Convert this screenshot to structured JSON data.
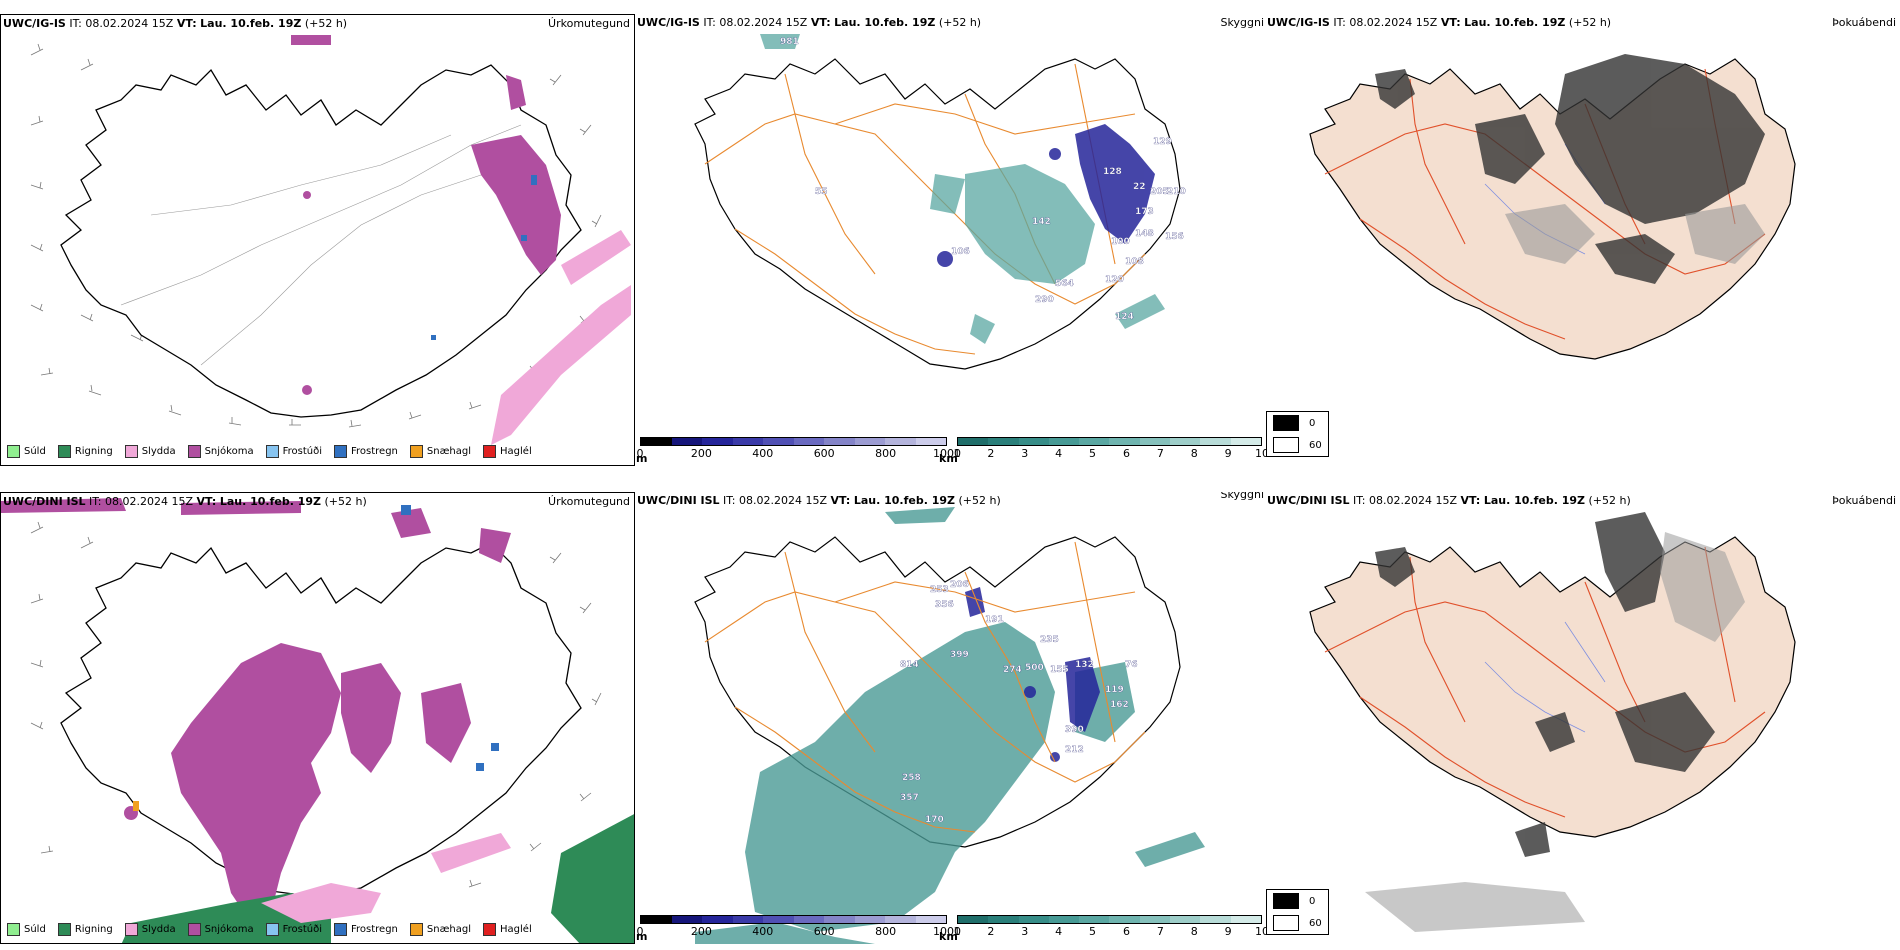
{
  "rows": [
    {
      "model": "UWC/IG-IS",
      "it": "IT: 08.02.2024 15Z",
      "vt_label": "VT:",
      "vt": "Lau. 10.feb. 19Z",
      "lead": "(+52 h)"
    },
    {
      "model": "UWC/DINI ISL",
      "it": "IT: 08.02.2024 15Z",
      "vt_label": "VT:",
      "vt": "Lau. 10.feb. 19Z",
      "lead": "(+52 h)"
    }
  ],
  "titles": {
    "precip_type": "Úrkomutegund",
    "visibility": "Skyggni",
    "fog": "Þokuábendi"
  },
  "precip_legend": [
    {
      "label": "Súld",
      "color": "#90ee90"
    },
    {
      "label": "Rigning",
      "color": "#2e8b57"
    },
    {
      "label": "Slydda",
      "color": "#f0a8d8"
    },
    {
      "label": "Snjókoma",
      "color": "#b04fa0"
    },
    {
      "label": "Frostúði",
      "color": "#87c4f0"
    },
    {
      "label": "Frostregn",
      "color": "#3070c0"
    },
    {
      "label": "Snæhagl",
      "color": "#f0a020"
    },
    {
      "label": "Haglél",
      "color": "#e02020"
    }
  ],
  "vis_scale_m": {
    "unit": "m",
    "ticks": [
      "0",
      "200",
      "400",
      "600",
      "800",
      "1000"
    ],
    "colors": [
      "#000000",
      "#15157a",
      "#25259a",
      "#3a3aa8",
      "#5050b4",
      "#6a6ac0",
      "#8484c8",
      "#9c9cd2",
      "#b4b4dc",
      "#ccccea"
    ]
  },
  "vis_scale_km": {
    "unit": "km",
    "ticks": [
      "1",
      "2",
      "3",
      "4",
      "5",
      "6",
      "7",
      "8",
      "9",
      "10"
    ],
    "colors": [
      "#1f6e6a",
      "#2a7f7a",
      "#378d88",
      "#479a95",
      "#5aa7a2",
      "#6fb4af",
      "#86c1bc",
      "#9ecec9",
      "#b8dcd8",
      "#d4ebe8"
    ]
  },
  "cloud_key": [
    {
      "label": "0",
      "color": "#000000"
    },
    {
      "label": "60",
      "color": "#ffffff"
    }
  ],
  "vis_labels_top": [
    "981",
    "129",
    "128",
    "22",
    "205",
    "210",
    "55",
    "142",
    "173",
    "148",
    "100",
    "156",
    "106",
    "564",
    "290",
    "120",
    "108",
    "124"
  ],
  "vis_labels_bottom": [
    "253",
    "206",
    "356",
    "191",
    "814",
    "399",
    "235",
    "274",
    "500",
    "155",
    "132",
    "76",
    "119",
    "162",
    "390",
    "212",
    "258",
    "357",
    "170"
  ]
}
